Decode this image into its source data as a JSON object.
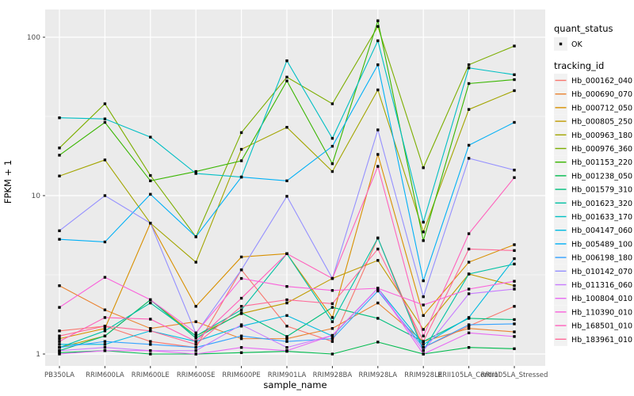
{
  "chart_data": {
    "type": "line",
    "xlabel": "sample_name",
    "ylabel": "FPKM + 1",
    "y_scale": "log10",
    "y_ticks": [
      1,
      10,
      100
    ],
    "y_tick_labels": [
      "1",
      "10",
      "100"
    ],
    "y_minor_gridlines": [
      3.162,
      31.623
    ],
    "ylim": [
      1,
      150
    ],
    "grid": true,
    "legend_position": "right",
    "panel_background": "#EBEBEB",
    "gridline_color": "#FFFFFF",
    "point_color": "#000000",
    "categories": [
      "PB350LA",
      "RRIM600LA",
      "RRIM600LE",
      "RRIM600SE",
      "RRIM600PE",
      "RRIM901LA",
      "RRIM928BA",
      "RRIM928LA",
      "RRIM928LE",
      "RRII105LA_Control",
      "RRII105LA_Stressed"
    ],
    "legend": {
      "quant_status_title": "quant_status",
      "quant_status_items": [
        {
          "label": "OK",
          "shape": "point"
        }
      ],
      "tracking_id_title": "tracking_id"
    },
    "series": [
      {
        "name": "Hb_000162_040",
        "color": "#F8766D",
        "values": [
          1.4,
          1.5,
          1.2,
          1.1,
          3.4,
          1.5,
          1.2,
          5.4,
          1.1,
          1.5,
          2.0
        ]
      },
      {
        "name": "Hb_000690_070",
        "color": "#EA8331",
        "values": [
          2.7,
          1.9,
          1.45,
          1.6,
          1.25,
          1.25,
          1.45,
          2.1,
          1.2,
          1.45,
          1.38
        ]
      },
      {
        "name": "Hb_000712_050",
        "color": "#D89000",
        "values": [
          1.25,
          1.45,
          6.7,
          2.0,
          4.1,
          4.3,
          1.7,
          18.2,
          1.75,
          3.8,
          4.9
        ]
      },
      {
        "name": "Hb_000805_250",
        "color": "#C09B00",
        "values": [
          1.1,
          1.3,
          2.2,
          1.3,
          1.8,
          2.1,
          3.0,
          3.9,
          1.43,
          3.2,
          2.7
        ]
      },
      {
        "name": "Hb_000963_180",
        "color": "#A3A500",
        "values": [
          13.3,
          16.8,
          6.7,
          3.8,
          19.6,
          27,
          14.2,
          46.5,
          5.9,
          35,
          46
        ]
      },
      {
        "name": "Hb_000976_360",
        "color": "#7CAE00",
        "values": [
          20,
          38,
          13.4,
          5.5,
          25,
          56,
          38,
          117,
          15,
          67,
          88
        ]
      },
      {
        "name": "Hb_001153_220",
        "color": "#39B600",
        "values": [
          18,
          29,
          12.4,
          14.2,
          16.6,
          53,
          15.9,
          127,
          5.2,
          51,
          54
        ]
      },
      {
        "name": "Hb_001238_050",
        "color": "#00BB4E",
        "values": [
          1.02,
          1.05,
          1.0,
          1.0,
          1.02,
          1.04,
          1.0,
          1.19,
          1.0,
          1.1,
          1.08
        ]
      },
      {
        "name": "Hb_001579_310",
        "color": "#00BF7D",
        "values": [
          1.05,
          1.3,
          2.2,
          1.26,
          1.82,
          1.29,
          1.97,
          1.68,
          1.2,
          1.68,
          1.65
        ]
      },
      {
        "name": "Hb_001623_320",
        "color": "#00C1A3",
        "values": [
          1.1,
          1.4,
          2.1,
          1.3,
          1.9,
          4.3,
          1.6,
          5.4,
          1.05,
          3.2,
          3.7
        ]
      },
      {
        "name": "Hb_001633_170",
        "color": "#00BFC4",
        "values": [
          31,
          30.5,
          23.4,
          13.8,
          13.1,
          71,
          23,
          95,
          6.8,
          64,
          58
        ]
      },
      {
        "name": "Hb_004147_060",
        "color": "#00BAE0",
        "values": [
          1.15,
          1.15,
          1.4,
          1.2,
          1.5,
          1.75,
          1.3,
          2.6,
          1.15,
          1.7,
          4.0
        ]
      },
      {
        "name": "Hb_005489_100",
        "color": "#00B0F6",
        "values": [
          5.3,
          5.1,
          10.2,
          5.5,
          13.1,
          12.4,
          20.5,
          67,
          2.9,
          20.8,
          29
        ]
      },
      {
        "name": "Hb_006198_180",
        "color": "#35A2FF",
        "values": [
          1.1,
          1.2,
          1.15,
          1.1,
          1.3,
          1.2,
          1.25,
          2.5,
          1.1,
          1.53,
          1.55
        ]
      },
      {
        "name": "Hb_010142_070",
        "color": "#9590FF",
        "values": [
          6.0,
          10,
          6.7,
          1.35,
          3.4,
          9.9,
          3.0,
          26,
          2.3,
          17.2,
          14.5
        ]
      },
      {
        "name": "Hb_011316_060",
        "color": "#C77CFF",
        "values": [
          1.05,
          1.1,
          1.05,
          1.05,
          1.53,
          1.1,
          1.31,
          2.6,
          1.05,
          2.4,
          2.57
        ]
      },
      {
        "name": "Hb_100804_010",
        "color": "#E76BF3",
        "values": [
          1.0,
          1.05,
          1.05,
          1.0,
          1.1,
          1.05,
          1.31,
          2.6,
          1.0,
          1.36,
          1.29
        ]
      },
      {
        "name": "Hb_110390_010",
        "color": "#FA62DB",
        "values": [
          1.97,
          3.05,
          2.2,
          1.36,
          3.0,
          2.67,
          2.52,
          2.6,
          2.04,
          2.57,
          2.88
        ]
      },
      {
        "name": "Hb_168501_010",
        "color": "#FF62BC",
        "values": [
          1.2,
          1.7,
          1.66,
          1.2,
          2.25,
          4.3,
          3.0,
          15.3,
          1.3,
          5.75,
          13.0
        ]
      },
      {
        "name": "Hb_183961_010",
        "color": "#FF6A98",
        "values": [
          1.3,
          1.5,
          1.4,
          1.15,
          2.0,
          2.2,
          2.08,
          4.6,
          1.2,
          4.6,
          4.5
        ]
      }
    ]
  }
}
